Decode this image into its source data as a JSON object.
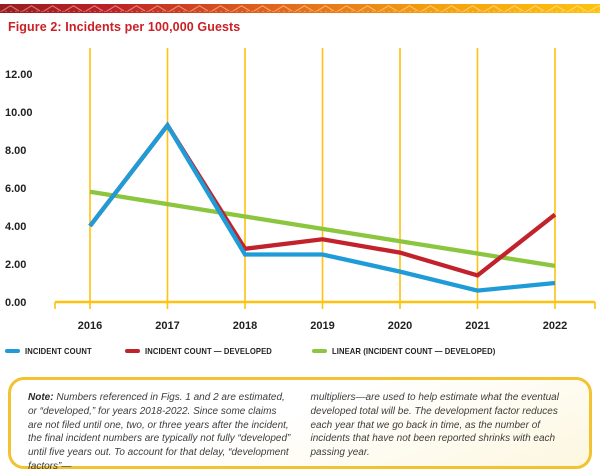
{
  "title": "Figure 2: Incidents per 100,000 Guests",
  "chart_data": {
    "type": "line",
    "title": "Figure 2: Incidents per 100,000 Guests",
    "x_labels": [
      "2016",
      "2017",
      "2018",
      "2019",
      "2020",
      "2021",
      "2022"
    ],
    "y_tick_labels": [
      "12.00",
      "10.00",
      "8.00",
      "6.00",
      "4.00",
      "2.00",
      "0.00"
    ],
    "y_tick_values": [
      12,
      10,
      8,
      6,
      4,
      2,
      0
    ],
    "ylim": [
      0,
      12
    ],
    "grid": "vertical-only",
    "gridline_color": "#FFC20E",
    "axis_color": "#FFC20E",
    "legend_position": "bottom-left",
    "series": [
      {
        "name": "INCIDENT COUNT",
        "color": "#1F9CD8",
        "values": [
          4.0,
          9.3,
          2.5,
          2.5,
          1.6,
          0.6,
          1.0
        ]
      },
      {
        "name": "INCIDENT COUNT — DEVELOPED",
        "color": "#C2222B",
        "values": [
          4.0,
          9.3,
          2.8,
          3.3,
          2.6,
          1.4,
          4.6
        ]
      },
      {
        "name": "LINEAR (INCIDENT COUNT — DEVELOPED)",
        "color": "#8CC63F",
        "values": [
          5.8,
          5.15,
          4.5,
          3.85,
          3.2,
          2.55,
          1.9
        ]
      }
    ]
  },
  "note": {
    "label": "Note:",
    "col1": "Numbers referenced in Figs. 1 and 2 are estimated, or “developed,” for years 2018-2022. Since some claims are not filed until one, two, or three years after the incident, the final incident numbers are typically not fully “developed” until five years out. To account for that delay, “development factors”—",
    "col2": "multipliers—are used to help estimate what the eventual developed total will be. The development factor reduces each year that we go back in time, as the number of incidents that have not been reported shrinks with each passing year."
  },
  "colors": {
    "accent_gold": "#FFC20E",
    "title_red": "#CB2026",
    "note_border_gold": "#F2C230",
    "text_dark": "#231F20",
    "banner_gradient": [
      "#9A1B1E",
      "#BC2025",
      "#E2641A",
      "#F59E0D",
      "#FFC20E"
    ]
  }
}
